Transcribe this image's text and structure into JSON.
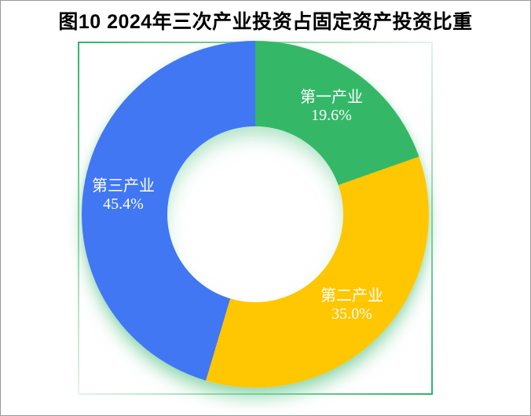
{
  "title": "图10 2024年三次产业投资占固定资产投资比重",
  "chart_data": {
    "type": "pie",
    "subtype": "donut",
    "title": "图10 2024年三次产业投资占固定资产投资比重",
    "categories": [
      "第一产业",
      "第二产业",
      "第三产业"
    ],
    "values": [
      19.6,
      35.0,
      45.4
    ],
    "unit": "%",
    "colors": [
      "#34b868",
      "#ffc602",
      "#4177f3"
    ],
    "start_angle_deg": 0,
    "direction": "clockwise",
    "inner_radius_ratio": 0.51,
    "legend": "none",
    "labels": [
      {
        "name": "第一产业",
        "percent": "19.6%"
      },
      {
        "name": "第二产业",
        "percent": "35.0%"
      },
      {
        "name": "第三产业",
        "percent": "45.4%"
      }
    ]
  },
  "style": {
    "background": "#ffffff",
    "frame_border_color": "#999999",
    "label_color": "#ffffff",
    "plot_border_strong": "#2fb365",
    "plot_border_pale": "#e2f4ea",
    "glow_rgba": "rgba(96,198,138,0.55)",
    "glow_rgba_soft": "rgba(96,198,138,0.28)"
  }
}
